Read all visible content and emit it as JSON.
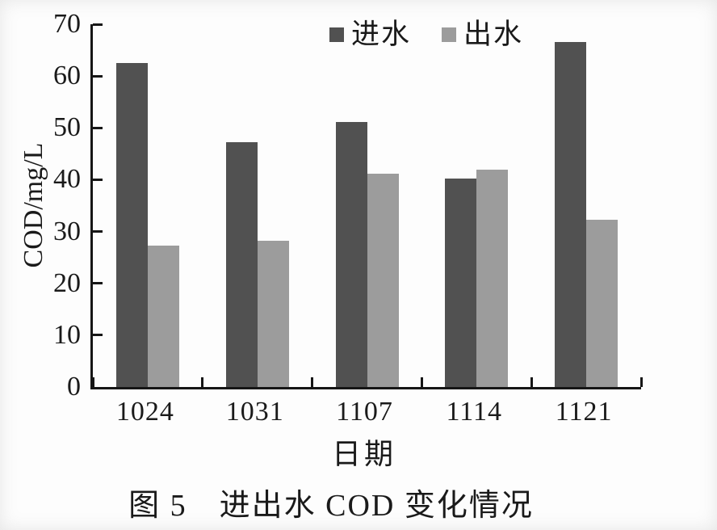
{
  "caption": "图 5　进出水 COD 变化情况",
  "chart_data": {
    "type": "bar",
    "title": "图 5 进出水 COD 变化情况",
    "xlabel": "日期",
    "ylabel": "COD/mg/L",
    "categories": [
      "1024",
      "1031",
      "1107",
      "1114",
      "1121"
    ],
    "series": [
      {
        "name": "进水",
        "color": "#515151",
        "values": [
          62.5,
          47.2,
          51.2,
          40.2,
          66.5
        ]
      },
      {
        "name": "出水",
        "color": "#9c9c9c",
        "values": [
          27.3,
          28.2,
          41.1,
          42,
          32.3
        ]
      }
    ],
    "ylim": [
      0,
      70
    ],
    "ytick_step": 10,
    "grid": false,
    "legend_position": "top-center-inside",
    "axis_color": "#161616"
  }
}
